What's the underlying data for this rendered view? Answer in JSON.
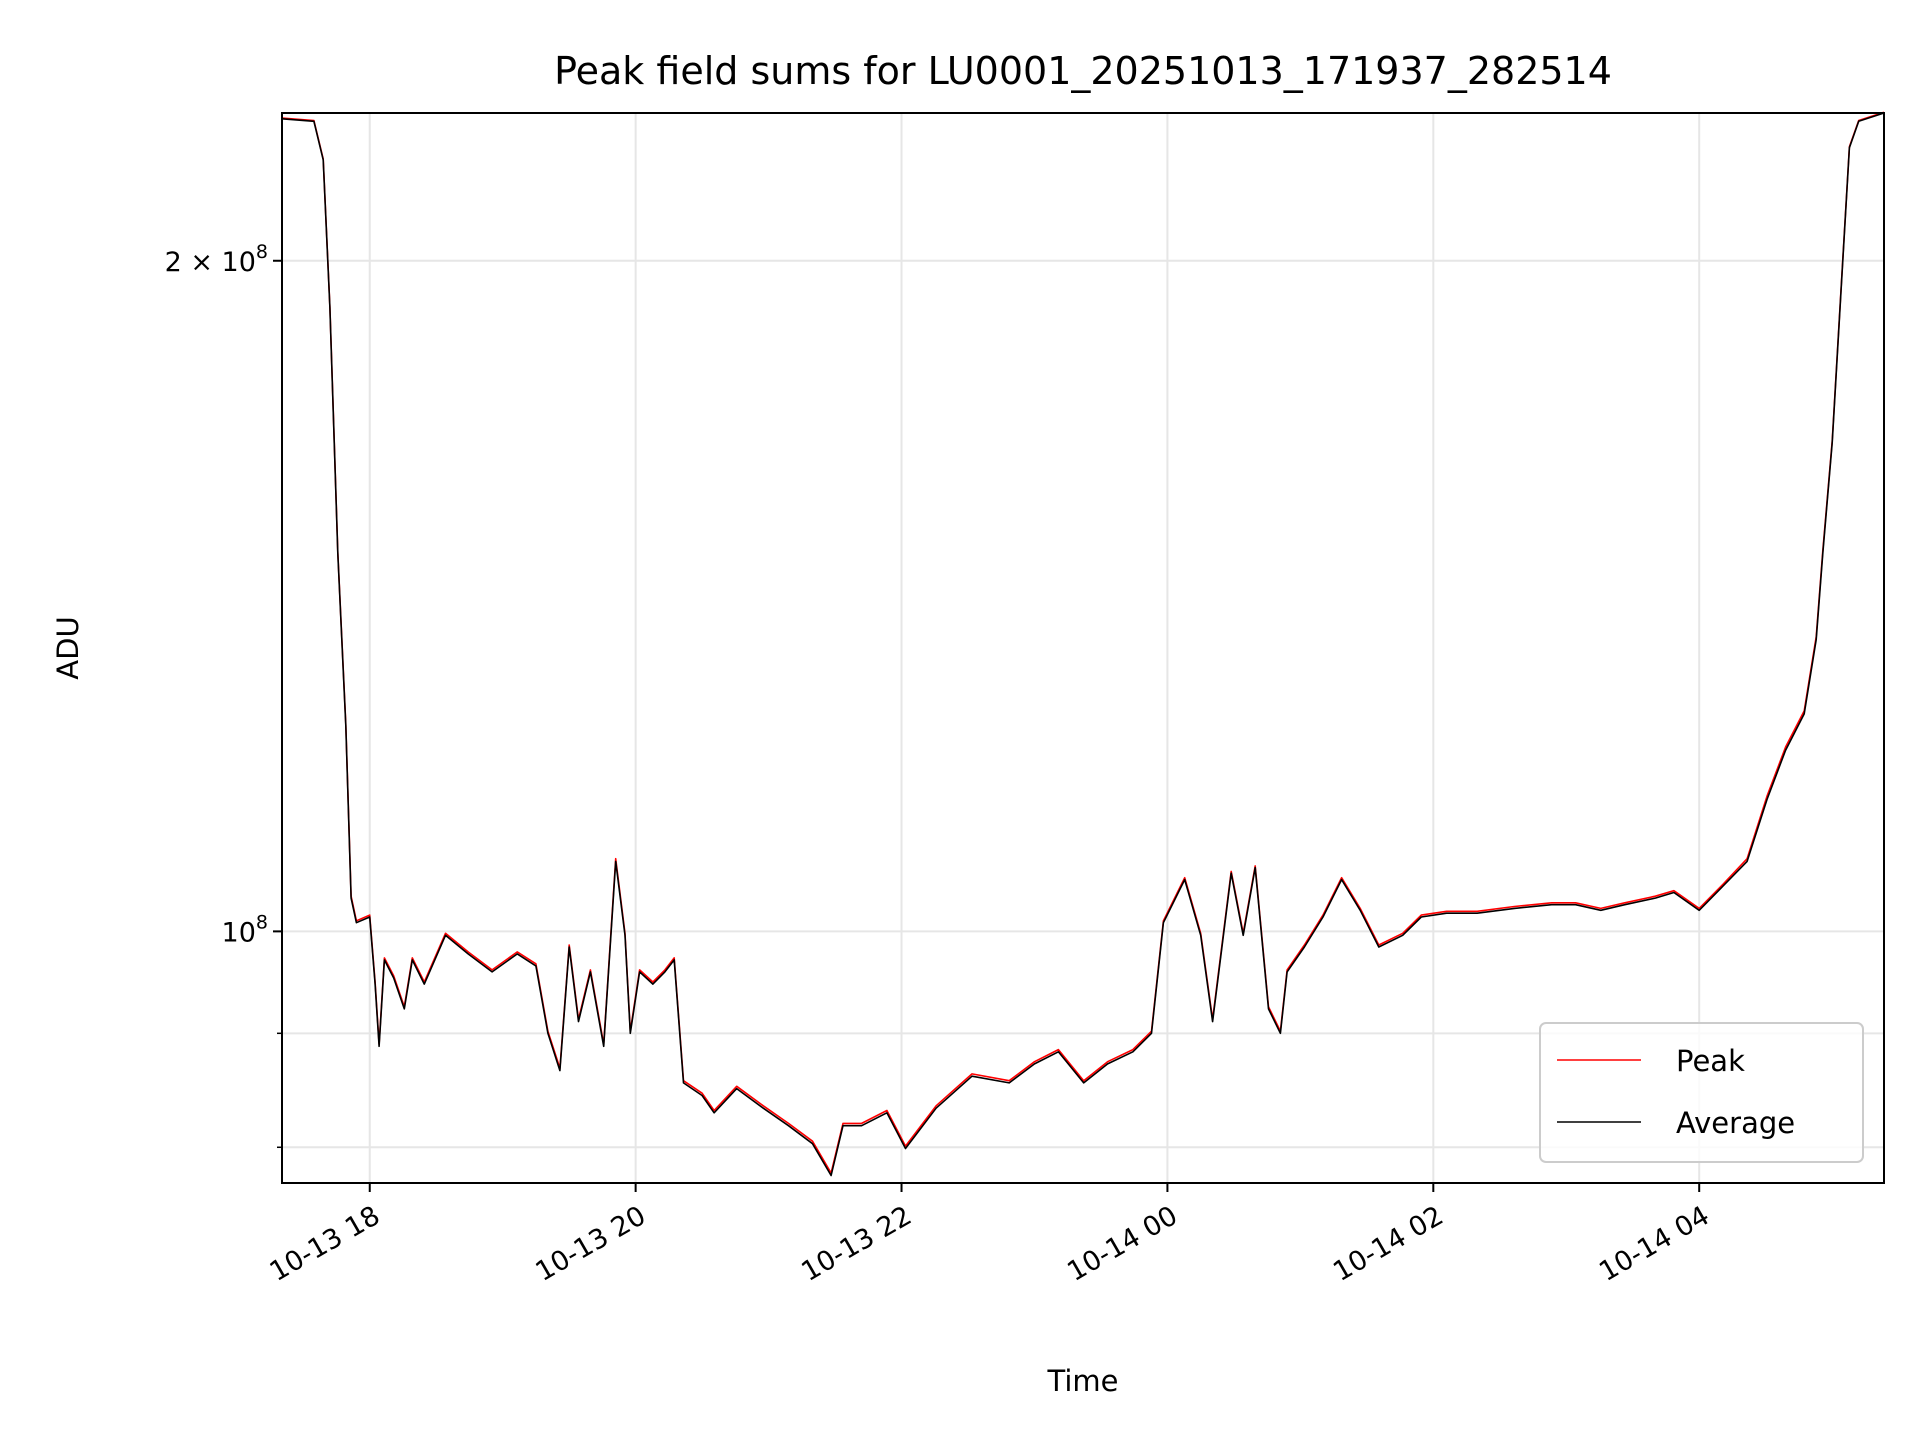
{
  "chart_data": {
    "type": "line",
    "title": "Peak field sums for LU0001_20251013_171937_282514",
    "xlabel": "Time",
    "ylabel": "ADU",
    "x_unit": "hours since 2025-10-13 00:00",
    "xlim": [
      17.34,
      29.39
    ],
    "ylim": [
      77100000,
      233000000
    ],
    "yscale": "log",
    "grid": true,
    "legend_position": "lower-right",
    "x_ticks": [
      {
        "value": 18,
        "label": "10-13 18"
      },
      {
        "value": 20,
        "label": "10-13 20"
      },
      {
        "value": 22,
        "label": "10-13 22"
      },
      {
        "value": 24,
        "label": "10-14 00"
      },
      {
        "value": 26,
        "label": "10-14 02"
      },
      {
        "value": 28,
        "label": "10-14 04"
      }
    ],
    "y_major_ticks": [
      {
        "value": 100000000,
        "base": "10",
        "exp": "8",
        "prefix": ""
      },
      {
        "value": 200000000,
        "base": "10",
        "exp": "8",
        "prefix": "2 × "
      }
    ],
    "y_minor_ticks": [
      80000000,
      90000000
    ],
    "x": [
      17.34,
      17.58,
      17.65,
      17.7,
      17.76,
      17.82,
      17.86,
      17.9,
      18.0,
      18.04,
      18.07,
      18.11,
      18.18,
      18.26,
      18.32,
      18.41,
      18.57,
      18.74,
      18.92,
      19.11,
      19.25,
      19.34,
      19.43,
      19.5,
      19.57,
      19.66,
      19.76,
      19.85,
      19.92,
      19.96,
      20.03,
      20.13,
      20.22,
      20.29,
      20.36,
      20.5,
      20.59,
      20.76,
      20.96,
      21.15,
      21.33,
      21.47,
      21.56,
      21.7,
      21.89,
      22.03,
      22.26,
      22.53,
      22.81,
      23.0,
      23.18,
      23.37,
      23.55,
      23.74,
      23.88,
      23.97,
      24.13,
      24.25,
      24.34,
      24.48,
      24.57,
      24.66,
      24.76,
      24.85,
      24.9,
      25.03,
      25.17,
      25.31,
      25.45,
      25.59,
      25.77,
      25.91,
      26.1,
      26.33,
      26.61,
      26.89,
      27.07,
      27.26,
      27.44,
      27.67,
      27.81,
      28.0,
      28.18,
      28.36,
      28.51,
      28.65,
      28.79,
      28.88,
      28.93,
      29.0,
      29.07,
      29.13,
      29.2,
      29.39
    ],
    "series": [
      {
        "name": "Peak",
        "color": "#ff0000",
        "values": [
          231800000.0,
          231200000.0,
          222200000.0,
          190700000.0,
          148000000.0,
          123900000.0,
          103700000.0,
          101100000.0,
          101700000.0,
          94900000.0,
          89000000.0,
          97300000.0,
          95500000.0,
          92500000.0,
          97300000.0,
          94900000.0,
          99800000.0,
          97900000.0,
          96100000.0,
          97900000.0,
          96700000.0,
          90200000.0,
          86800000.0,
          98600000.0,
          91300000.0,
          96100000.0,
          89000000.0,
          107800000.0,
          99800000.0,
          90200000.0,
          96100000.0,
          94900000.0,
          96100000.0,
          97300000.0,
          85700000.0,
          84600000.0,
          83100000.0,
          85200000.0,
          83500000.0,
          82000000.0,
          80500000.0,
          77900000.0,
          82000000.0,
          82000000.0,
          83100000.0,
          80100000.0,
          83500000.0,
          86300000.0,
          85700000.0,
          87400000.0,
          88500000.0,
          85700000.0,
          87400000.0,
          88500000.0,
          90200000.0,
          101100000.0,
          105700000.0,
          99800000.0,
          91300000.0,
          106400000.0,
          99800000.0,
          107000000.0,
          92500000.0,
          90200000.0,
          96100000.0,
          98600000.0,
          101700000.0,
          105700000.0,
          102400000.0,
          98600000.0,
          99800000.0,
          101700000.0,
          102100000.0,
          102100000.0,
          102600000.0,
          103000000.0,
          103000000.0,
          102400000.0,
          103000000.0,
          103700000.0,
          104300000.0,
          102400000.0,
          105000000.0,
          107800000.0,
          115000000.0,
          121000000.0,
          125600000.0,
          135600000.0,
          148200000.0,
          166000000.0,
          195800000.0,
          225000000.0,
          231200000.0,
          233200000.0
        ]
      },
      {
        "name": "Average",
        "color": "#000000",
        "values": [
          231600000.0,
          231000000.0,
          222000000.0,
          190500000.0,
          147800000.0,
          123700000.0,
          103500000.0,
          100900000.0,
          101500000.0,
          94700000.0,
          88800000.0,
          97100000.0,
          95300000.0,
          92300000.0,
          97100000.0,
          94700000.0,
          99600000.0,
          97700000.0,
          95900000.0,
          97700000.0,
          96500000.0,
          90000000.0,
          86600000.0,
          98400000.0,
          91100000.0,
          95900000.0,
          88800000.0,
          107500000.0,
          99600000.0,
          90000000.0,
          95900000.0,
          94700000.0,
          95900000.0,
          97100000.0,
          85500000.0,
          84400000.0,
          82900000.0,
          85000000.0,
          83300000.0,
          81800000.0,
          80300000.0,
          77700000.0,
          81800000.0,
          81800000.0,
          82900000.0,
          79900000.0,
          83300000.0,
          86100000.0,
          85500000.0,
          87200000.0,
          88300000.0,
          85500000.0,
          87200000.0,
          88300000.0,
          90000000.0,
          100900000.0,
          105500000.0,
          99600000.0,
          91100000.0,
          106200000.0,
          99600000.0,
          106800000.0,
          92300000.0,
          90000000.0,
          95900000.0,
          98400000.0,
          101500000.0,
          105500000.0,
          102200000.0,
          98400000.0,
          99600000.0,
          101500000.0,
          101900000.0,
          101900000.0,
          102400000.0,
          102800000.0,
          102800000.0,
          102200000.0,
          102800000.0,
          103500000.0,
          104100000.0,
          102200000.0,
          104800000.0,
          107500000.0,
          114600000.0,
          120600000.0,
          125200000.0,
          135200000.0,
          147800000.0,
          165700000.0,
          195500000.0,
          224800000.0,
          231000000.0,
          233000000.0
        ]
      }
    ]
  }
}
